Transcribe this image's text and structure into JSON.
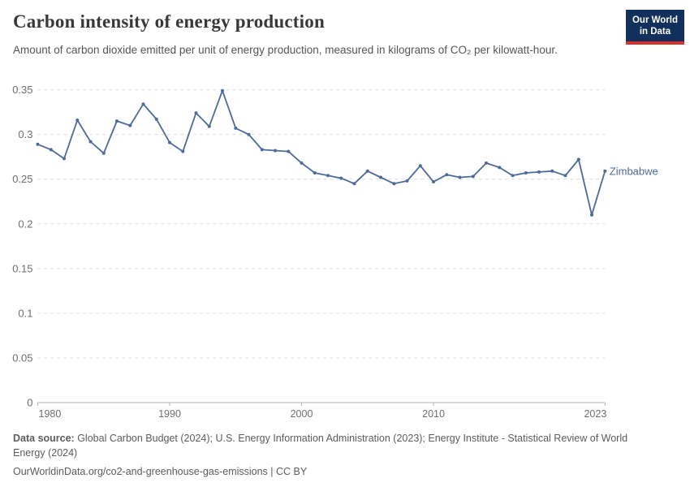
{
  "header": {
    "title": "Carbon intensity of energy production",
    "subtitle": "Amount of carbon dioxide emitted per unit of energy production, measured in kilograms of CO₂ per kilowatt-hour.",
    "logo": {
      "line1": "Our World",
      "line2": "in Data"
    }
  },
  "chart_data": {
    "type": "line",
    "title": "Carbon intensity of energy production",
    "xlabel": "",
    "ylabel": "kilograms of CO₂ per kilowatt-hour",
    "xlim": [
      1980,
      2023
    ],
    "ylim": [
      0,
      0.35
    ],
    "grid": "horizontal-dashed",
    "legend_position": "end-of-line-label",
    "series": [
      {
        "name": "Zimbabwe",
        "color": "#4C6A9C",
        "x": [
          1980,
          1981,
          1982,
          1983,
          1984,
          1985,
          1986,
          1987,
          1988,
          1989,
          1990,
          1991,
          1992,
          1993,
          1994,
          1995,
          1996,
          1997,
          1998,
          1999,
          2000,
          2001,
          2002,
          2003,
          2004,
          2005,
          2006,
          2007,
          2008,
          2009,
          2010,
          2011,
          2012,
          2013,
          2014,
          2015,
          2016,
          2017,
          2018,
          2019,
          2020,
          2021,
          2022,
          2023
        ],
        "values": [
          0.289,
          0.283,
          0.273,
          0.316,
          0.292,
          0.279,
          0.315,
          0.31,
          0.334,
          0.317,
          0.291,
          0.281,
          0.324,
          0.309,
          0.349,
          0.307,
          0.3,
          0.283,
          0.282,
          0.281,
          0.268,
          0.257,
          0.254,
          0.251,
          0.245,
          0.259,
          0.252,
          0.245,
          0.248,
          0.265,
          0.247,
          0.255,
          0.252,
          0.253,
          0.268,
          0.263,
          0.254,
          0.257,
          0.258,
          0.259,
          0.254,
          0.272,
          0.21,
          0.259
        ]
      }
    ],
    "y_ticks": [
      {
        "value": 0,
        "label": "0"
      },
      {
        "value": 0.05,
        "label": "0.05"
      },
      {
        "value": 0.1,
        "label": "0.1"
      },
      {
        "value": 0.15,
        "label": "0.15"
      },
      {
        "value": 0.2,
        "label": "0.2"
      },
      {
        "value": 0.25,
        "label": "0.25"
      },
      {
        "value": 0.3,
        "label": "0.3"
      },
      {
        "value": 0.35,
        "label": "0.35"
      }
    ],
    "x_ticks": [
      {
        "year": 1980,
        "label": "1980",
        "align": "start"
      },
      {
        "year": 1990,
        "label": "1990",
        "align": "middle"
      },
      {
        "year": 2000,
        "label": "2000",
        "align": "middle"
      },
      {
        "year": 2010,
        "label": "2010",
        "align": "middle"
      },
      {
        "year": 2023,
        "label": "2023",
        "align": "end"
      }
    ]
  },
  "footer": {
    "source_label": "Data source:",
    "source_text": " Global Carbon Budget (2024); U.S. Energy Information Administration (2023); Energy Institute - Statistical Review of World Energy (2024)",
    "url_line": "OurWorldinData.org/co2-and-greenhouse-gas-emissions | CC BY"
  }
}
